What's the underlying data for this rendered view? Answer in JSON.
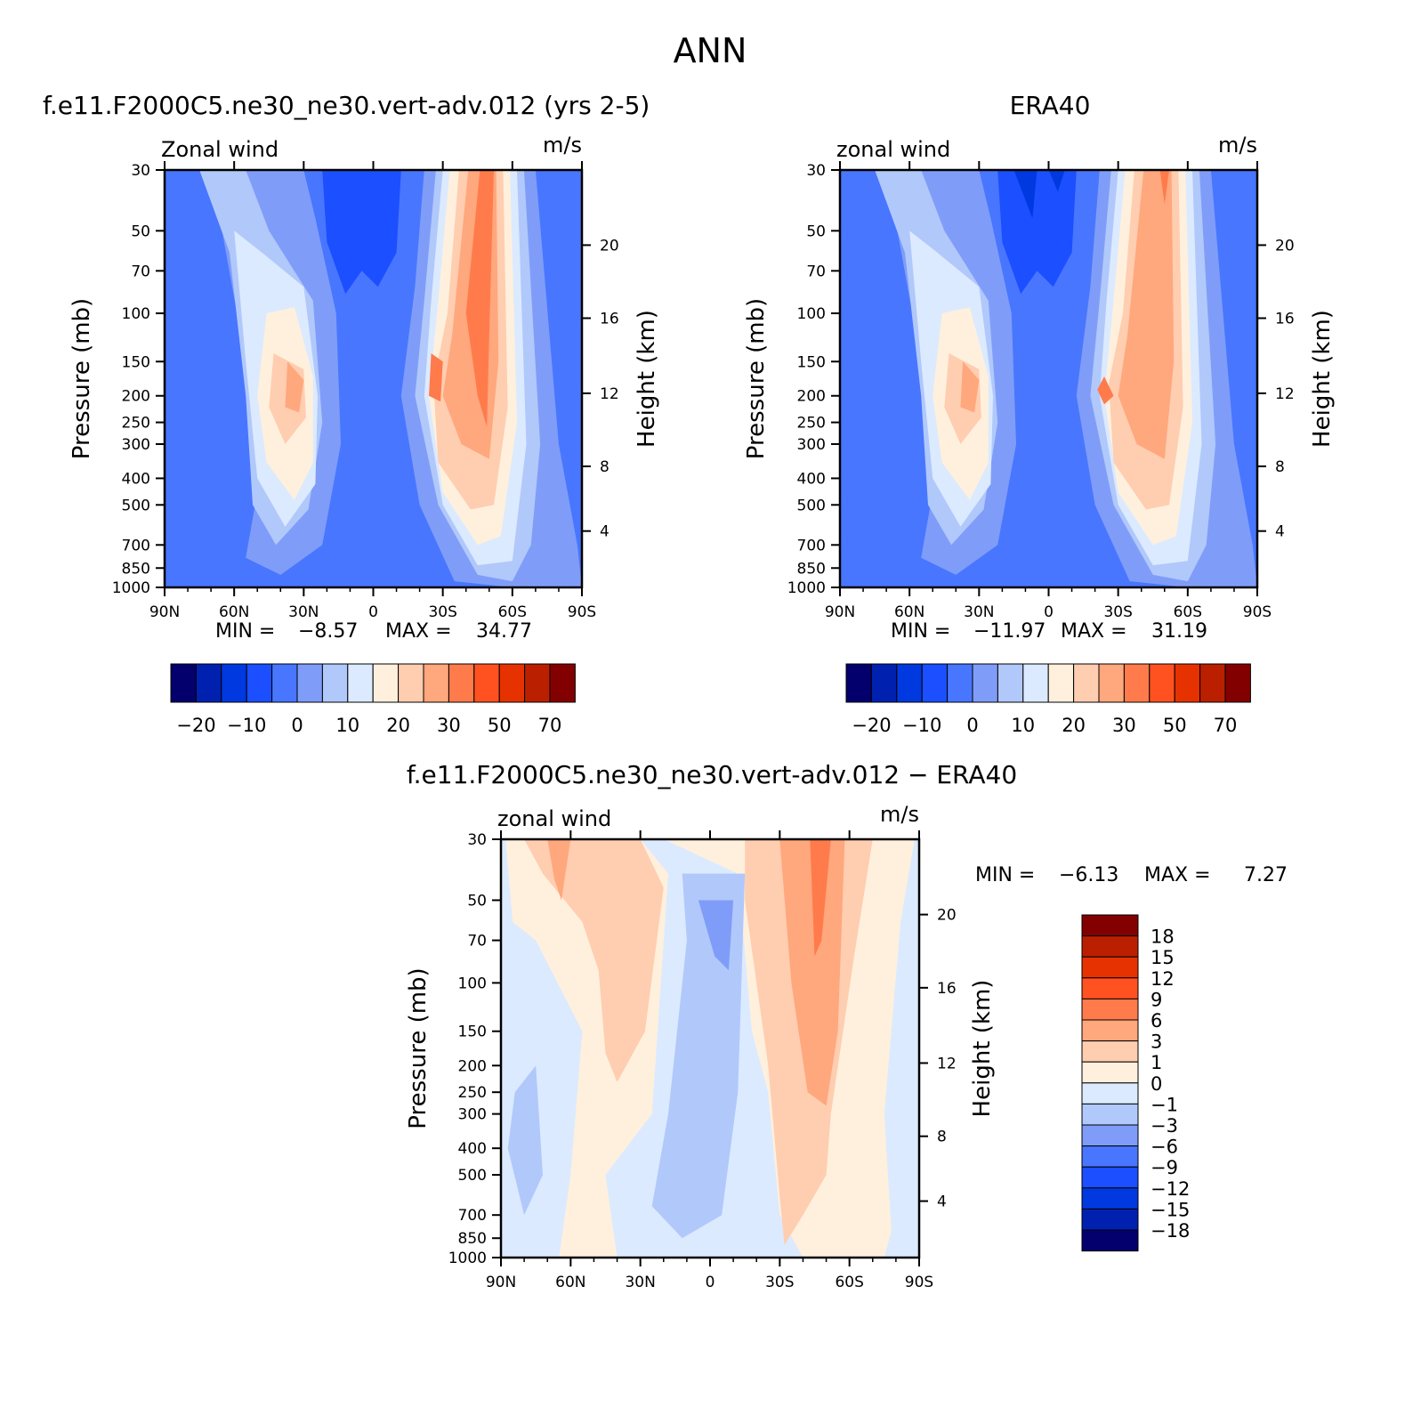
{
  "title": "ANN",
  "chart_data": [
    {
      "type": "heatmap",
      "title": "f.e11.F2000C5.ne30_ne30.vert-adv.012 (yrs 2-5)",
      "left_label": "Zonal wind",
      "right_label": "m/s",
      "ylabel": "Pressure (mb)",
      "ylabel_right": "Height (km)",
      "x_ticks": [
        "90N",
        "60N",
        "30N",
        "0",
        "30S",
        "60S",
        "90S"
      ],
      "y_ticks": [
        "30",
        "50",
        "70",
        "100",
        "150",
        "200",
        "250",
        "300",
        "400",
        "500",
        "700",
        "850",
        "1000"
      ],
      "height_ticks": [
        "20",
        "16",
        "12",
        "8",
        "4"
      ],
      "min_label": "MIN =",
      "min": "−8.57",
      "max_label": "MAX =",
      "max": "34.77",
      "jets": [
        {
          "lat": 32,
          "pressure": 200,
          "value": 22
        },
        {
          "lat": -42,
          "pressure": 200,
          "value": 35
        }
      ],
      "easterly_center": {
        "lat": 5,
        "pressure": 40,
        "value": -8
      }
    },
    {
      "type": "heatmap",
      "title": "ERA40",
      "left_label": "zonal wind",
      "right_label": "m/s",
      "ylabel": "Pressure (mb)",
      "ylabel_right": "Height (km)",
      "x_ticks": [
        "90N",
        "60N",
        "30N",
        "0",
        "30S",
        "60S",
        "90S"
      ],
      "y_ticks": [
        "30",
        "50",
        "70",
        "100",
        "150",
        "200",
        "250",
        "300",
        "400",
        "500",
        "700",
        "850",
        "1000"
      ],
      "height_ticks": [
        "20",
        "16",
        "12",
        "8",
        "4"
      ],
      "min_label": "MIN =",
      "min": "−11.97",
      "max_label": "MAX =",
      "max": "31.19",
      "jets": [
        {
          "lat": 32,
          "pressure": 200,
          "value": 21
        },
        {
          "lat": -44,
          "pressure": 200,
          "value": 31
        }
      ],
      "easterly_center": {
        "lat": 5,
        "pressure": 35,
        "value": -12
      }
    },
    {
      "type": "heatmap",
      "title": "f.e11.F2000C5.ne30_ne30.vert-adv.012 − ERA40",
      "left_label": "zonal wind",
      "right_label": "m/s",
      "ylabel": "Pressure (mb)",
      "ylabel_right": "Height (km)",
      "x_ticks": [
        "90N",
        "60N",
        "30N",
        "0",
        "30S",
        "60S",
        "90S"
      ],
      "y_ticks": [
        "30",
        "50",
        "70",
        "100",
        "150",
        "200",
        "250",
        "300",
        "400",
        "500",
        "700",
        "850",
        "1000"
      ],
      "height_ticks": [
        "20",
        "16",
        "12",
        "8",
        "4"
      ],
      "min_label": "MIN =",
      "min": "−6.13",
      "max_label": "MAX =",
      "max": "7.27"
    }
  ],
  "colorbar_main": {
    "colors": [
      "#03006d",
      "#0021b0",
      "#0039e0",
      "#1b4fff",
      "#4876ff",
      "#7f9df8",
      "#b1c8fb",
      "#dbeaff",
      "#fff0dd",
      "#ffcdb0",
      "#ffa77d",
      "#ff7b4c",
      "#ff5220",
      "#e63200",
      "#ba2000",
      "#830000"
    ],
    "labels": [
      "−20",
      "−10",
      "0",
      "10",
      "20",
      "30",
      "50",
      "70"
    ]
  },
  "colorbar_diff": {
    "colors": [
      "#830000",
      "#ba2000",
      "#e63200",
      "#ff5220",
      "#ff7b4c",
      "#ffa77d",
      "#ffcdb0",
      "#fff0dd",
      "#dbeaff",
      "#b1c8fb",
      "#7f9df8",
      "#4876ff",
      "#1b4fff",
      "#0039e0",
      "#0021b0",
      "#03006d"
    ],
    "labels": [
      "18",
      "15",
      "12",
      "9",
      "6",
      "3",
      "1",
      "0",
      "−1",
      "−3",
      "−6",
      "−9",
      "−12",
      "−15",
      "−18"
    ]
  }
}
